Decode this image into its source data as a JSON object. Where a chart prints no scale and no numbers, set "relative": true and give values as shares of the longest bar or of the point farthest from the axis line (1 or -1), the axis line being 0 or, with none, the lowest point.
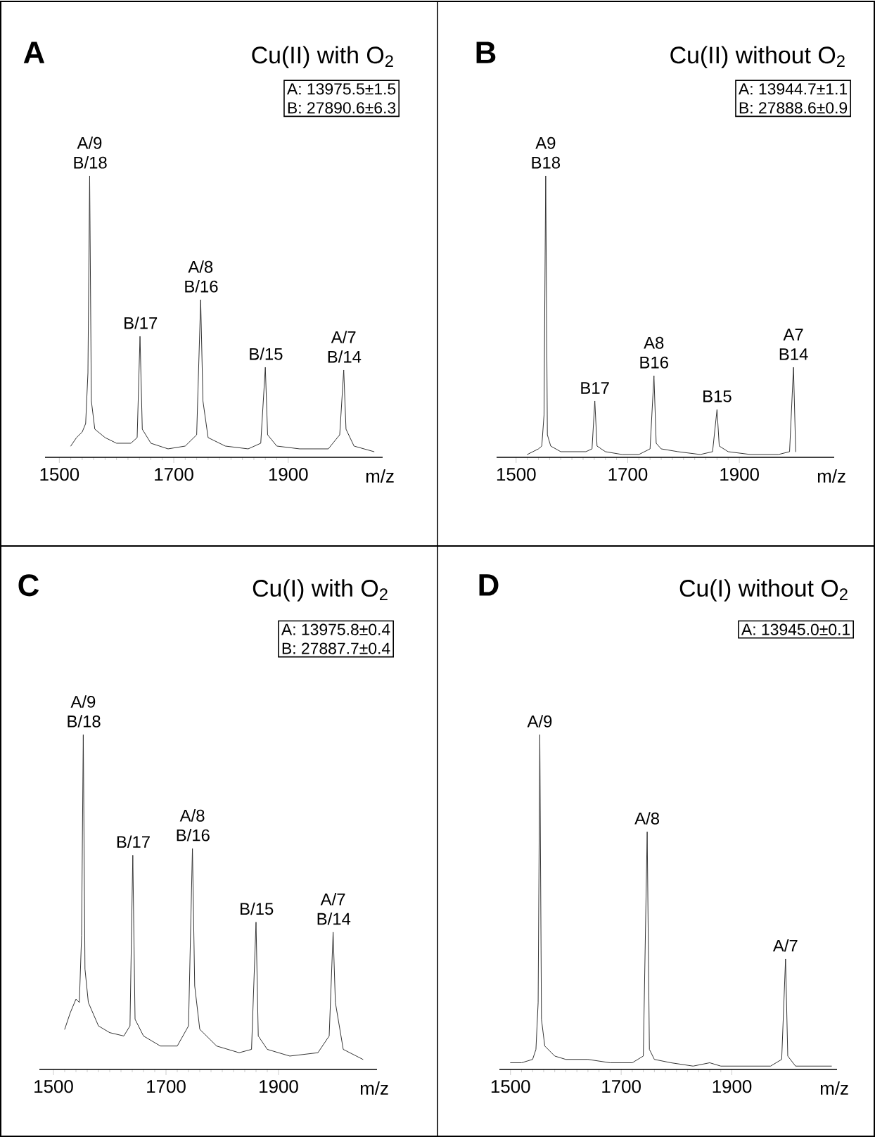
{
  "chart_data": [
    {
      "type": "line",
      "title": "Cu(II) with O$_{2}$",
      "xlabel": "m/z",
      "relative": true,
      "xlim": [
        1475,
        2065
      ],
      "xticks": [
        1500,
        1700,
        1900
      ],
      "x": [
        1520,
        1530,
        1540,
        1546,
        1550,
        1553,
        1556,
        1562,
        1580,
        1600,
        1625,
        1636,
        1641,
        1645,
        1660,
        1690,
        1720,
        1740,
        1747,
        1751,
        1760,
        1790,
        1830,
        1852,
        1860,
        1864,
        1880,
        1920,
        1970,
        1990,
        1997,
        2001,
        2015,
        2050
      ],
      "series": [
        {
          "color": "#333333",
          "values": [
            0.04,
            0.07,
            0.09,
            0.12,
            0.3,
            1.0,
            0.2,
            0.1,
            0.07,
            0.05,
            0.05,
            0.07,
            0.43,
            0.1,
            0.05,
            0.03,
            0.04,
            0.08,
            0.56,
            0.2,
            0.07,
            0.04,
            0.03,
            0.05,
            0.32,
            0.08,
            0.04,
            0.03,
            0.03,
            0.08,
            0.31,
            0.1,
            0.04,
            0.02
          ]
        }
      ],
      "annotations": [
        "A",
        "A: 13975.5±1.5",
        "B: 27890.6±6.3",
        {
          "text": "A/9 B/18",
          "x": 1553,
          "y": 1.0
        },
        {
          "text": "B/17",
          "x": 1641,
          "y": 0.43
        },
        {
          "text": "A/8 B/16",
          "x": 1747,
          "y": 0.56
        },
        {
          "text": "B/15",
          "x": 1860,
          "y": 0.32
        },
        {
          "text": "A/7 B/14",
          "x": 1997,
          "y": 0.31
        }
      ]
    },
    {
      "type": "line",
      "title": "Cu(II) without O$_{2}$",
      "xlabel": "m/z",
      "relative": true,
      "xlim": [
        1465,
        2070
      ],
      "xticks": [
        1500,
        1700,
        1900
      ],
      "x": [
        1520,
        1530,
        1540,
        1546,
        1550,
        1553,
        1556,
        1562,
        1580,
        1600,
        1625,
        1636,
        1641,
        1645,
        1660,
        1690,
        1720,
        1740,
        1747,
        1751,
        1760,
        1790,
        1830,
        1852,
        1860,
        1864,
        1880,
        1920,
        1970,
        1990,
        1997,
        2001
      ],
      "series": [
        {
          "color": "#333333",
          "values": [
            0.01,
            0.02,
            0.03,
            0.04,
            0.15,
            1.0,
            0.08,
            0.04,
            0.02,
            0.02,
            0.02,
            0.03,
            0.2,
            0.04,
            0.02,
            0.01,
            0.01,
            0.03,
            0.29,
            0.05,
            0.03,
            0.02,
            0.01,
            0.02,
            0.17,
            0.04,
            0.02,
            0.01,
            0.01,
            0.02,
            0.32,
            0.02
          ]
        }
      ],
      "annotations": [
        "B",
        "A: 13944.7±1.1",
        "B: 27888.6±0.9",
        {
          "text": "A9 B18",
          "x": 1553,
          "y": 1.0
        },
        {
          "text": "B17",
          "x": 1641,
          "y": 0.2
        },
        {
          "text": "A8 B16",
          "x": 1747,
          "y": 0.29
        },
        {
          "text": "B15",
          "x": 1860,
          "y": 0.17
        },
        {
          "text": "A7 B14",
          "x": 1997,
          "y": 0.32
        }
      ]
    },
    {
      "type": "line",
      "title": "Cu(I) with O$_{2}$",
      "xlabel": "m/z",
      "relative": true,
      "xlim": [
        1475,
        2075
      ],
      "xticks": [
        1500,
        1700,
        1900
      ],
      "x": [
        1520,
        1530,
        1540,
        1546,
        1550,
        1553,
        1556,
        1562,
        1580,
        1600,
        1625,
        1636,
        1641,
        1645,
        1660,
        1690,
        1720,
        1740,
        1747,
        1751,
        1760,
        1790,
        1830,
        1852,
        1860,
        1864,
        1880,
        1920,
        1970,
        1990,
        1997,
        2001,
        2015,
        2050
      ],
      "series": [
        {
          "color": "#333333",
          "values": [
            0.12,
            0.17,
            0.21,
            0.2,
            0.4,
            1.0,
            0.3,
            0.2,
            0.13,
            0.11,
            0.1,
            0.13,
            0.64,
            0.15,
            0.1,
            0.07,
            0.07,
            0.13,
            0.66,
            0.25,
            0.12,
            0.07,
            0.05,
            0.06,
            0.44,
            0.1,
            0.06,
            0.04,
            0.05,
            0.1,
            0.41,
            0.2,
            0.06,
            0.03
          ]
        }
      ],
      "annotations": [
        "C",
        "A: 13975.8±0.4",
        "B: 27887.7±0.4",
        {
          "text": "A/9 B/18",
          "x": 1553,
          "y": 1.0
        },
        {
          "text": "B/17",
          "x": 1641,
          "y": 0.64
        },
        {
          "text": "A/8 B/16",
          "x": 1747,
          "y": 0.66
        },
        {
          "text": "B/15",
          "x": 1860,
          "y": 0.44
        },
        {
          "text": "A/7 B/14",
          "x": 1997,
          "y": 0.41
        }
      ]
    },
    {
      "type": "line",
      "title": "Cu(I) without O$_{2}$",
      "xlabel": "m/z",
      "relative": true,
      "xlim": [
        1480,
        2090
      ],
      "xticks": [
        1500,
        1700,
        1900
      ],
      "x": [
        1500,
        1520,
        1540,
        1546,
        1550,
        1553,
        1556,
        1562,
        1580,
        1600,
        1640,
        1680,
        1720,
        1740,
        1747,
        1751,
        1760,
        1790,
        1830,
        1860,
        1880,
        1920,
        1970,
        1990,
        1997,
        2001,
        2015,
        2050,
        2080
      ],
      "series": [
        {
          "color": "#333333",
          "values": [
            0.02,
            0.02,
            0.03,
            0.06,
            0.2,
            1.0,
            0.15,
            0.07,
            0.04,
            0.03,
            0.03,
            0.02,
            0.02,
            0.04,
            0.71,
            0.06,
            0.03,
            0.02,
            0.01,
            0.02,
            0.01,
            0.01,
            0.01,
            0.03,
            0.33,
            0.04,
            0.01,
            0.01,
            0.01
          ]
        }
      ],
      "annotations": [
        "D",
        "A: 13945.0±0.1",
        {
          "text": "A/9",
          "x": 1553,
          "y": 1.0
        },
        {
          "text": "A/8",
          "x": 1747,
          "y": 0.71
        },
        {
          "text": "A/7",
          "x": 1997,
          "y": 0.33
        }
      ]
    }
  ]
}
